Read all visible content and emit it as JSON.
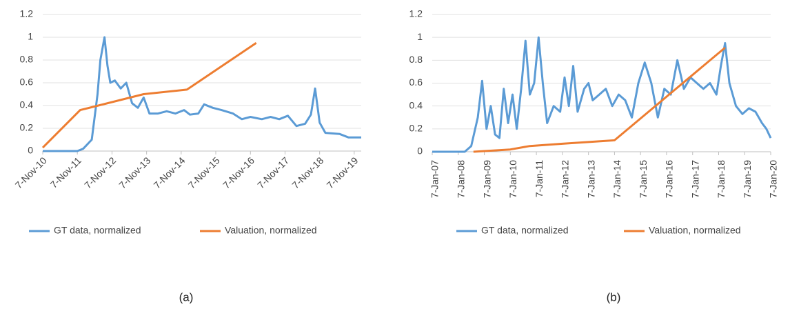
{
  "chart_data": [
    {
      "type": "line",
      "caption": "(a)",
      "xlim": [
        "2010-11-07",
        "2020-01-20"
      ],
      "ylim": [
        0,
        1.2
      ],
      "yticks": [
        0,
        0.2,
        0.4,
        0.6,
        0.8,
        1,
        1.2
      ],
      "xticks": [
        {
          "value": "2010-11-07",
          "label": "7-Nov-10"
        },
        {
          "value": "2011-11-07",
          "label": "7-Nov-11"
        },
        {
          "value": "2012-11-07",
          "label": "7-Nov-12"
        },
        {
          "value": "2013-11-07",
          "label": "7-Nov-13"
        },
        {
          "value": "2014-11-07",
          "label": "7-Nov-14"
        },
        {
          "value": "2015-11-07",
          "label": "7-Nov-15"
        },
        {
          "value": "2016-11-07",
          "label": "7-Nov-16"
        },
        {
          "value": "2017-11-07",
          "label": "7-Nov-17"
        },
        {
          "value": "2018-11-07",
          "label": "7-Nov-18"
        },
        {
          "value": "2019-11-07",
          "label": "7-Nov-19"
        }
      ],
      "grid": true,
      "tick_rotation": -45,
      "series": [
        {
          "name": "GT data, normalized",
          "color": "#5b9bd5",
          "x": [
            "2010-11-07",
            "2011-11-07",
            "2012-01-07",
            "2012-04-07",
            "2012-06-07",
            "2012-07-07",
            "2012-08-20",
            "2012-09-20",
            "2012-10-20",
            "2012-12-07",
            "2013-02-07",
            "2013-04-07",
            "2013-06-07",
            "2013-08-07",
            "2013-10-07",
            "2013-12-07",
            "2014-03-07",
            "2014-06-07",
            "2014-09-07",
            "2014-12-07",
            "2015-02-07",
            "2015-05-07",
            "2015-07-07",
            "2015-10-07",
            "2016-01-07",
            "2016-05-07",
            "2016-08-07",
            "2016-11-07",
            "2017-03-07",
            "2017-06-07",
            "2017-09-07",
            "2017-12-07",
            "2018-03-07",
            "2018-06-07",
            "2018-08-07",
            "2018-09-20",
            "2018-11-07",
            "2019-01-07",
            "2019-06-07",
            "2019-09-07",
            "2020-01-20"
          ],
          "values": [
            0,
            0,
            0.02,
            0.1,
            0.5,
            0.8,
            1.0,
            0.75,
            0.6,
            0.62,
            0.55,
            0.6,
            0.42,
            0.38,
            0.47,
            0.33,
            0.33,
            0.35,
            0.33,
            0.36,
            0.32,
            0.33,
            0.41,
            0.38,
            0.36,
            0.33,
            0.28,
            0.3,
            0.28,
            0.3,
            0.28,
            0.31,
            0.22,
            0.24,
            0.32,
            0.55,
            0.25,
            0.16,
            0.15,
            0.12,
            0.12
          ]
        },
        {
          "name": "Valuation, normalized",
          "color": "#ed7d31",
          "x": [
            "2010-11-07",
            "2011-12-07",
            "2013-10-07",
            "2015-01-07",
            "2017-01-07"
          ],
          "values": [
            0.03,
            0.36,
            0.5,
            0.54,
            0.95
          ]
        }
      ]
    },
    {
      "type": "line",
      "caption": "(b)",
      "xlim": [
        "2007-01-07",
        "2020-01-07"
      ],
      "ylim": [
        0,
        1.2
      ],
      "yticks": [
        0,
        0.2,
        0.4,
        0.6,
        0.8,
        1,
        1.2
      ],
      "xticks": [
        {
          "value": "2007-01-07",
          "label": "7-Jan-07"
        },
        {
          "value": "2008-01-07",
          "label": "7-Jan-08"
        },
        {
          "value": "2009-01-07",
          "label": "7-Jan-09"
        },
        {
          "value": "2010-01-07",
          "label": "7-Jan-10"
        },
        {
          "value": "2011-01-07",
          "label": "7-Jan-11"
        },
        {
          "value": "2012-01-07",
          "label": "7-Jan-12"
        },
        {
          "value": "2013-01-07",
          "label": "7-Jan-13"
        },
        {
          "value": "2014-01-07",
          "label": "7-Jan-14"
        },
        {
          "value": "2015-01-07",
          "label": "7-Jan-15"
        },
        {
          "value": "2016-01-07",
          "label": "7-Jan-16"
        },
        {
          "value": "2017-01-07",
          "label": "7-Jan-17"
        },
        {
          "value": "2018-01-07",
          "label": "7-Jan-18"
        },
        {
          "value": "2019-01-07",
          "label": "7-Jan-19"
        },
        {
          "value": "2020-01-07",
          "label": "7-Jan-20"
        }
      ],
      "grid": true,
      "tick_rotation": -90,
      "series": [
        {
          "name": "GT data, normalized",
          "color": "#5b9bd5",
          "x": [
            "2007-01-07",
            "2008-04-07",
            "2008-07-07",
            "2008-10-07",
            "2008-12-07",
            "2009-02-07",
            "2009-04-07",
            "2009-06-07",
            "2009-08-07",
            "2009-10-07",
            "2009-12-07",
            "2010-02-07",
            "2010-04-07",
            "2010-06-07",
            "2010-08-07",
            "2010-10-07",
            "2010-12-07",
            "2011-02-07",
            "2011-04-07",
            "2011-06-07",
            "2011-09-07",
            "2011-12-07",
            "2012-02-07",
            "2012-04-07",
            "2012-06-07",
            "2012-08-07",
            "2012-11-07",
            "2013-01-07",
            "2013-03-07",
            "2013-06-07",
            "2013-09-07",
            "2013-12-07",
            "2014-03-07",
            "2014-06-07",
            "2014-09-07",
            "2014-12-07",
            "2015-03-07",
            "2015-06-07",
            "2015-09-07",
            "2015-12-07",
            "2016-03-07",
            "2016-06-07",
            "2016-09-07",
            "2016-12-07",
            "2017-03-07",
            "2017-06-07",
            "2017-09-07",
            "2017-12-07",
            "2018-02-07",
            "2018-04-07",
            "2018-06-07",
            "2018-09-07",
            "2018-12-07",
            "2019-03-07",
            "2019-06-07",
            "2019-09-07",
            "2019-11-07",
            "2020-01-07"
          ],
          "values": [
            0,
            0,
            0.05,
            0.3,
            0.62,
            0.2,
            0.4,
            0.15,
            0.12,
            0.55,
            0.25,
            0.5,
            0.2,
            0.55,
            0.97,
            0.5,
            0.6,
            1.0,
            0.6,
            0.25,
            0.4,
            0.35,
            0.65,
            0.4,
            0.75,
            0.35,
            0.55,
            0.6,
            0.45,
            0.5,
            0.55,
            0.4,
            0.5,
            0.45,
            0.3,
            0.6,
            0.78,
            0.6,
            0.3,
            0.55,
            0.5,
            0.8,
            0.55,
            0.65,
            0.6,
            0.55,
            0.6,
            0.5,
            0.75,
            0.95,
            0.6,
            0.4,
            0.33,
            0.38,
            0.35,
            0.25,
            0.2,
            0.12
          ]
        },
        {
          "name": "Valuation, normalized",
          "color": "#ed7d31",
          "x": [
            "2008-08-07",
            "2010-01-07",
            "2010-10-07",
            "2012-01-07",
            "2014-01-07",
            "2018-04-07"
          ],
          "values": [
            0,
            0.02,
            0.05,
            0.07,
            0.1,
            0.91
          ]
        }
      ]
    }
  ]
}
